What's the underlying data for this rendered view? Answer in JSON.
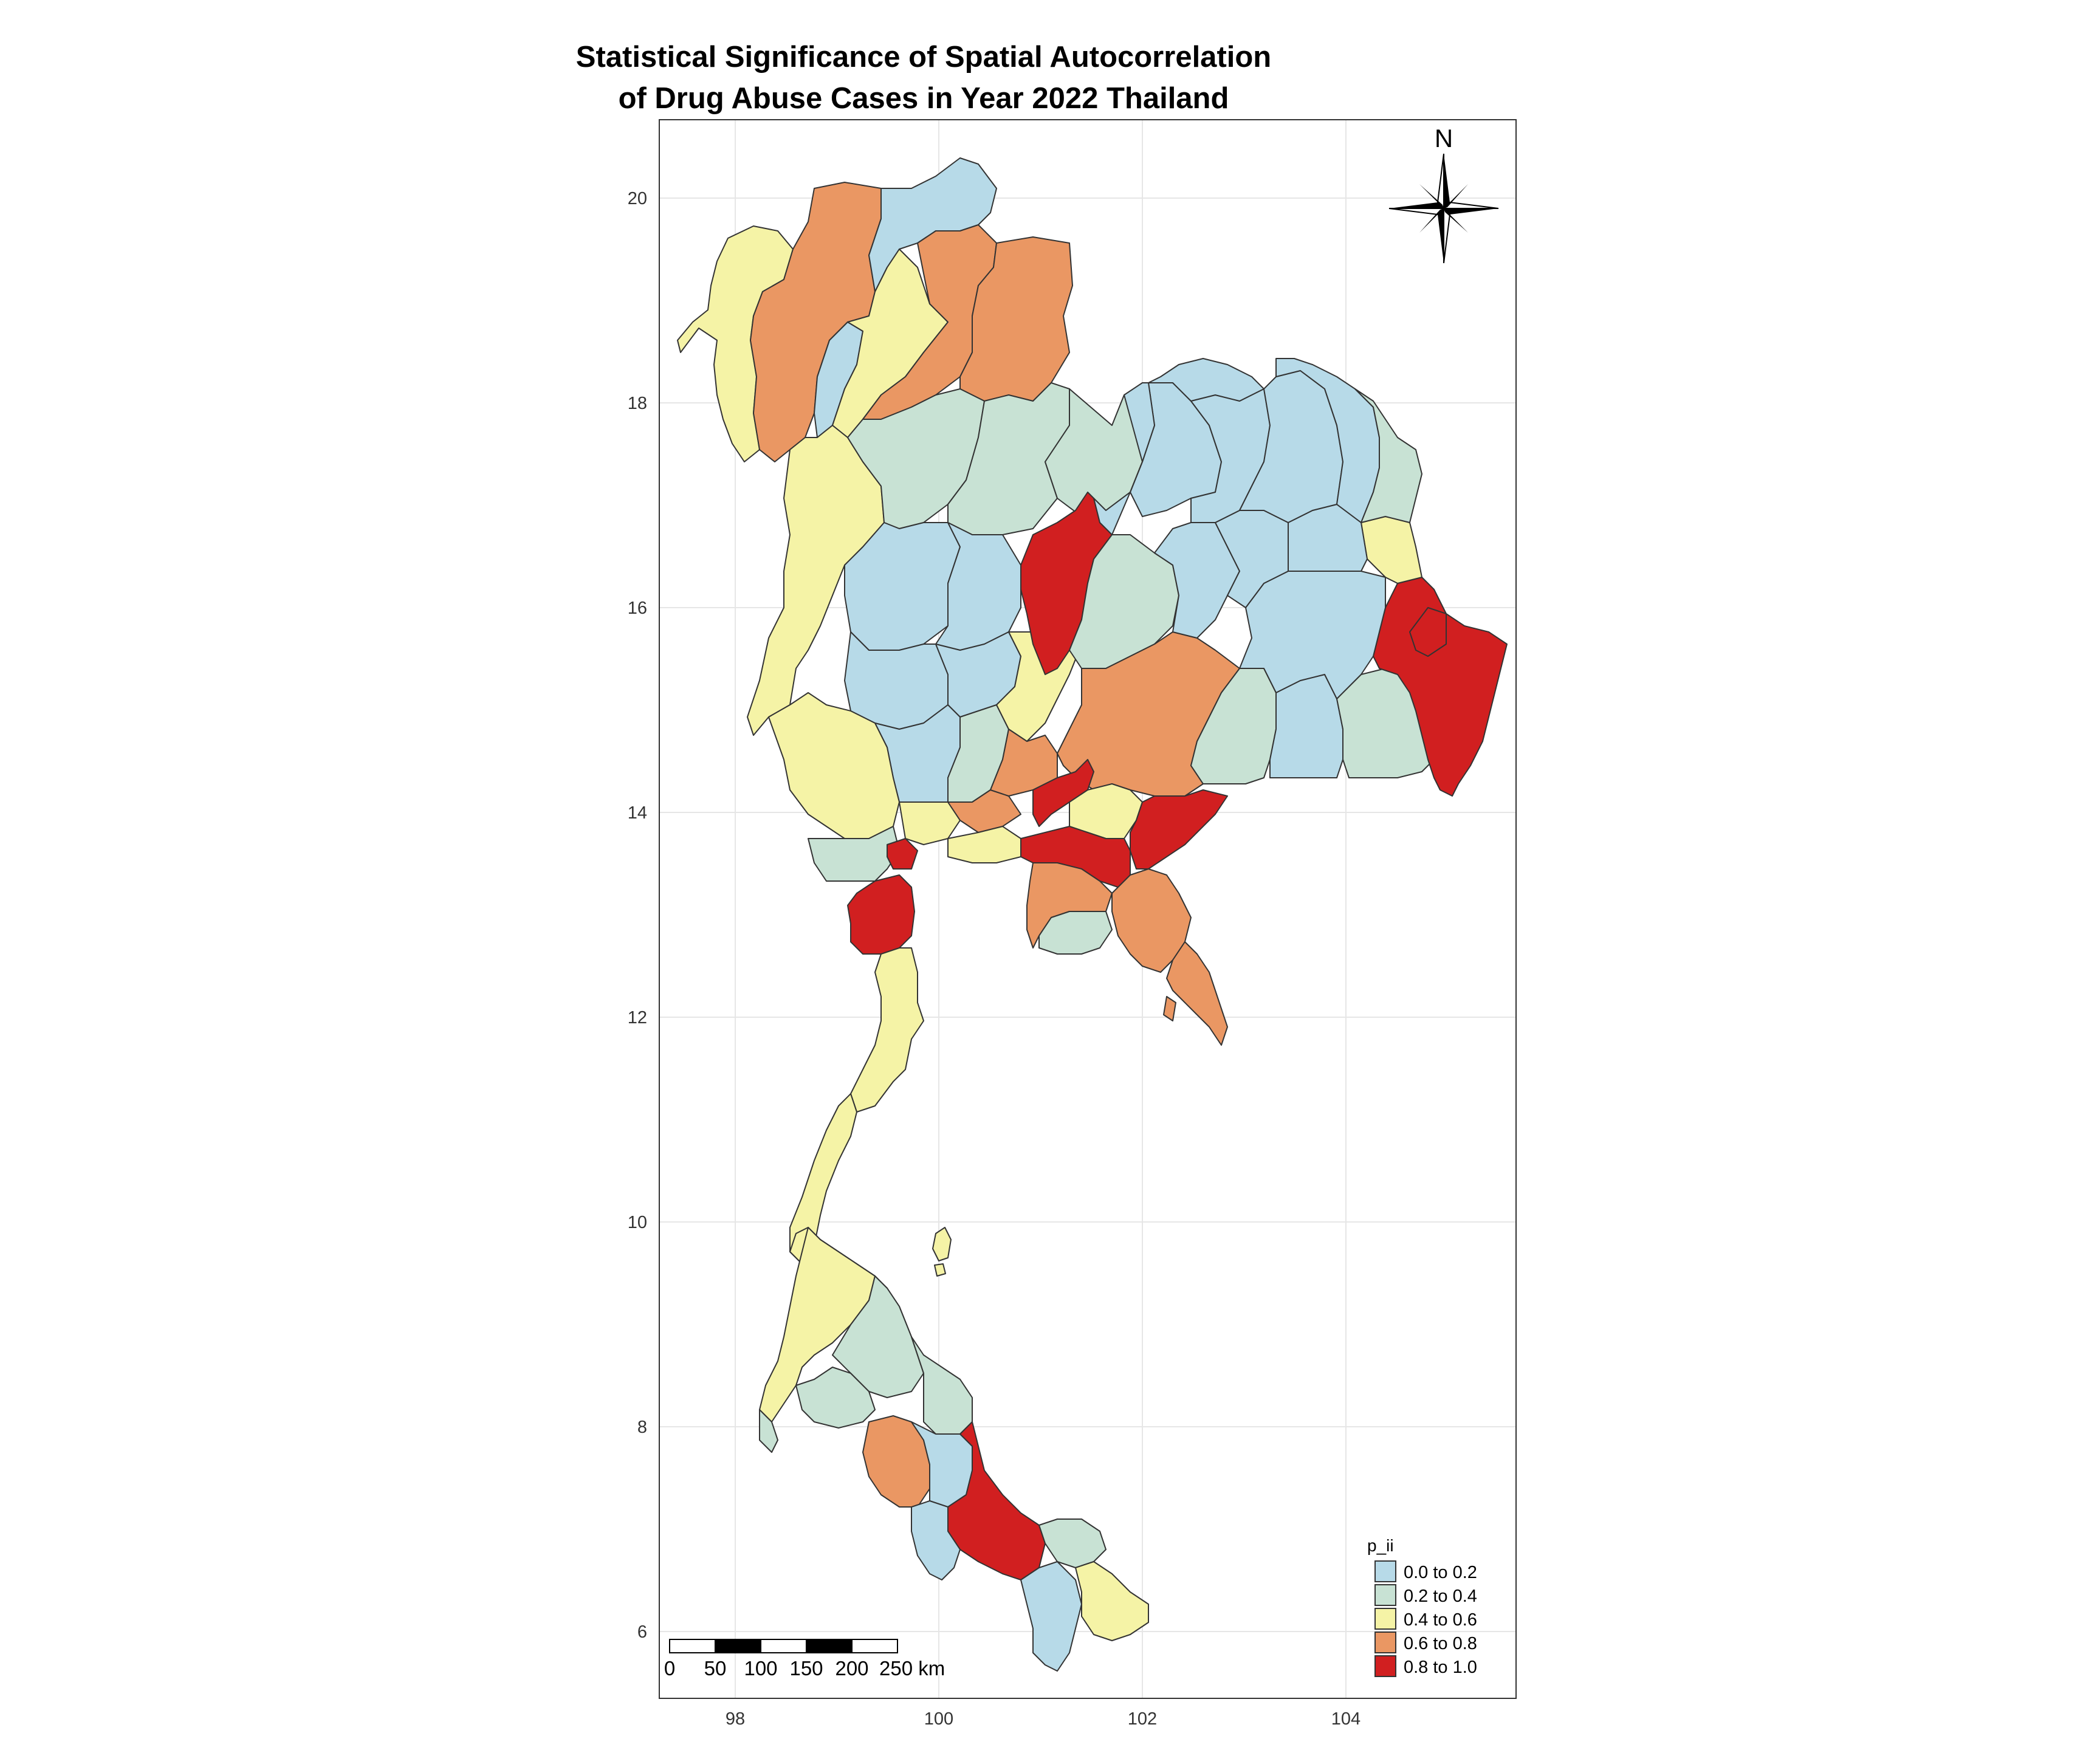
{
  "title": {
    "line1": "Statistical Significance of Spatial Autocorrelation",
    "line2": "of Drug Abuse Cases in Year 2022 Thailand"
  },
  "axes": {
    "x_ticks": [
      "98",
      "100",
      "102",
      "104"
    ],
    "y_ticks": [
      "20",
      "18",
      "16",
      "14",
      "12",
      "10",
      "8",
      "6"
    ]
  },
  "north_arrow": {
    "label": "N",
    "icon": "compass-rose-icon"
  },
  "legend": {
    "title": "p_ii",
    "items": [
      {
        "label": "0.0 to 0.2",
        "color": "#b7dae8"
      },
      {
        "label": "0.2 to 0.4",
        "color": "#c8e2d4"
      },
      {
        "label": "0.4 to 0.6",
        "color": "#f5f3a6"
      },
      {
        "label": "0.6 to 0.8",
        "color": "#ea9763"
      },
      {
        "label": "0.8 to 1.0",
        "color": "#d11f20"
      }
    ]
  },
  "scale_bar": {
    "labels": [
      "0",
      "50",
      "100",
      "150",
      "200",
      "250 km"
    ]
  }
}
